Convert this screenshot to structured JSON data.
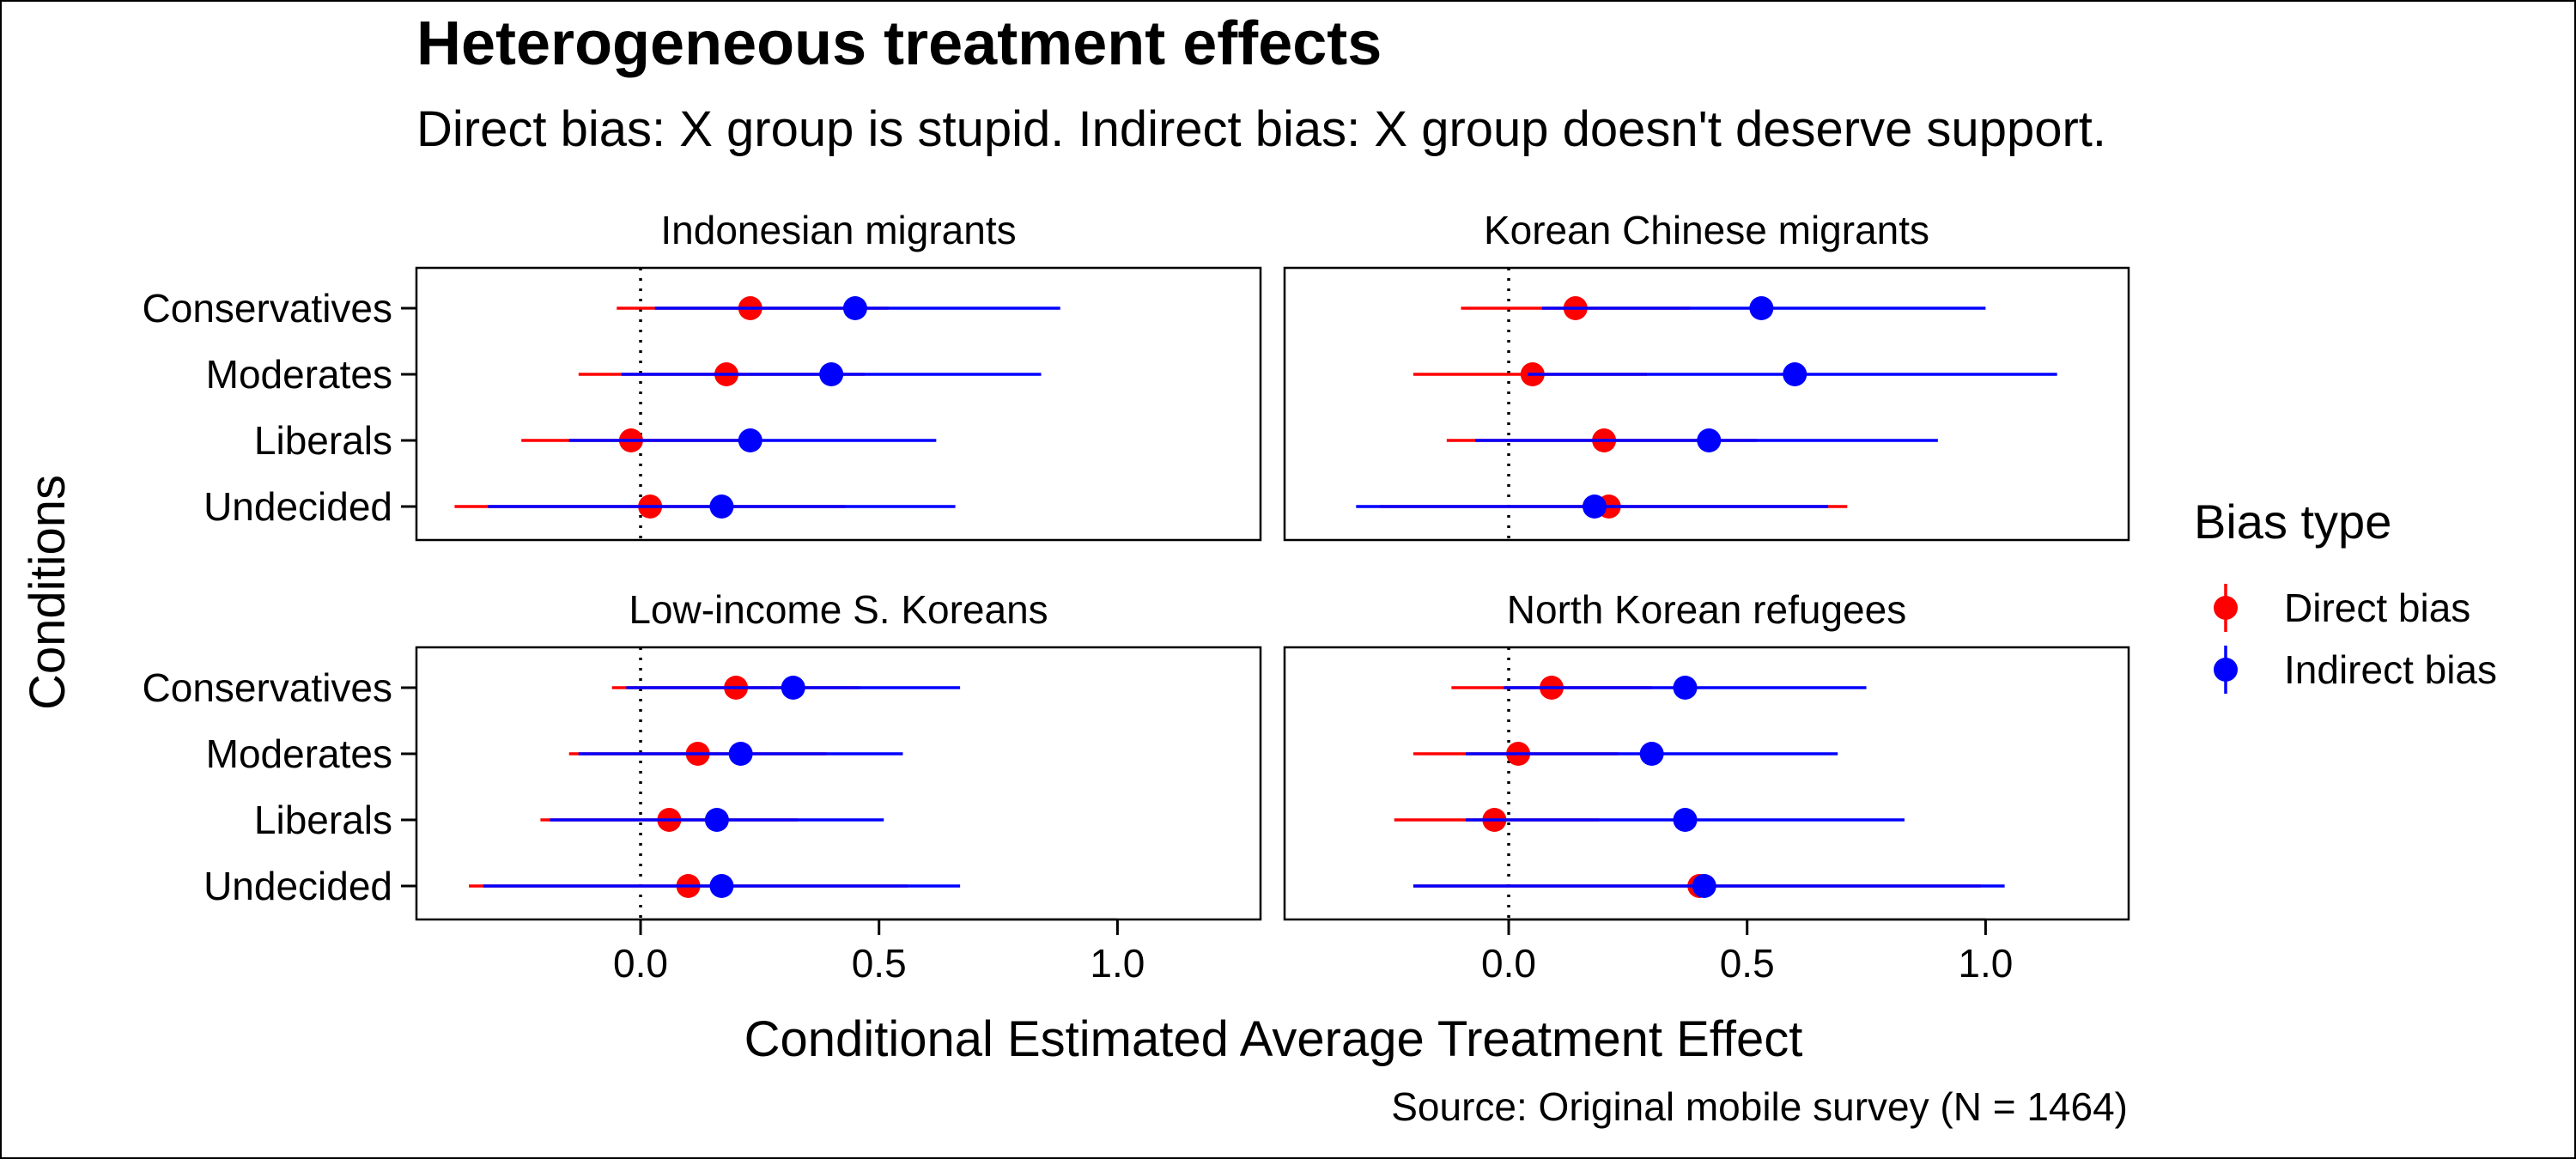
{
  "chart_data": {
    "type": "scatter",
    "title": "Heterogeneous treatment effects",
    "subtitle": "Direct bias: X group is stupid. Indirect bias: X group doesn't deserve support.",
    "xlabel": "Conditional Estimated Average Treatment Effect",
    "ylabel": "Conditions",
    "caption": "Source: Original mobile survey (N = 1464)",
    "xlim": [
      -0.47,
      1.3
    ],
    "xticks": [
      0.0,
      0.5,
      1.0
    ],
    "xtick_labels": [
      "0.0",
      "0.5",
      "1.0"
    ],
    "reference_line_x": 0,
    "grid": false,
    "legend": {
      "title": "Bias type",
      "position": "right",
      "entries": [
        {
          "label": "Direct bias",
          "color": "#ff0000"
        },
        {
          "label": "Indirect bias",
          "color": "#0000ff"
        }
      ]
    },
    "categories": [
      "Conservatives",
      "Moderates",
      "Liberals",
      "Undecided"
    ],
    "panels": [
      {
        "title": "Indonesian migrants",
        "series": [
          {
            "name": "Direct bias",
            "color": "#ff0000",
            "estimate": [
              0.23,
              0.18,
              -0.02,
              0.02
            ],
            "lower": [
              -0.05,
              -0.13,
              -0.25,
              -0.39
            ],
            "upper": [
              0.52,
              0.47,
              0.21,
              0.43
            ]
          },
          {
            "name": "Indirect bias",
            "color": "#0000ff",
            "estimate": [
              0.45,
              0.4,
              0.23,
              0.17
            ],
            "lower": [
              0.03,
              -0.04,
              -0.15,
              -0.32
            ],
            "upper": [
              0.88,
              0.84,
              0.62,
              0.66
            ]
          }
        ]
      },
      {
        "title": "Korean Chinese migrants",
        "series": [
          {
            "name": "Direct bias",
            "color": "#ff0000",
            "estimate": [
              0.14,
              0.05,
              0.2,
              0.21
            ],
            "lower": [
              -0.1,
              -0.2,
              -0.13,
              -0.27
            ],
            "upper": [
              0.38,
              0.29,
              0.52,
              0.71
            ]
          },
          {
            "name": "Indirect bias",
            "color": "#0000ff",
            "estimate": [
              0.53,
              0.6,
              0.42,
              0.18
            ],
            "lower": [
              0.07,
              0.04,
              -0.07,
              -0.32
            ],
            "upper": [
              1.0,
              1.15,
              0.9,
              0.67
            ]
          }
        ]
      },
      {
        "title": "Low-income S. Koreans",
        "series": [
          {
            "name": "Direct bias",
            "color": "#ff0000",
            "estimate": [
              0.2,
              0.12,
              0.06,
              0.1
            ],
            "lower": [
              -0.06,
              -0.15,
              -0.21,
              -0.36
            ],
            "upper": [
              0.46,
              0.39,
              0.33,
              0.56
            ]
          },
          {
            "name": "Indirect bias",
            "color": "#0000ff",
            "estimate": [
              0.32,
              0.21,
              0.16,
              0.17
            ],
            "lower": [
              -0.03,
              -0.13,
              -0.19,
              -0.33
            ],
            "upper": [
              0.67,
              0.55,
              0.51,
              0.67
            ]
          }
        ]
      },
      {
        "title": "North Korean refugees",
        "series": [
          {
            "name": "Direct bias",
            "color": "#ff0000",
            "estimate": [
              0.09,
              0.02,
              -0.03,
              0.4
            ],
            "lower": [
              -0.12,
              -0.2,
              -0.24,
              -0.2
            ],
            "upper": [
              0.3,
              0.23,
              0.19,
              0.99
            ]
          },
          {
            "name": "Indirect bias",
            "color": "#0000ff",
            "estimate": [
              0.37,
              0.3,
              0.37,
              0.41
            ],
            "lower": [
              -0.01,
              -0.09,
              -0.09,
              -0.2
            ],
            "upper": [
              0.75,
              0.69,
              0.83,
              1.04
            ]
          }
        ]
      }
    ]
  }
}
